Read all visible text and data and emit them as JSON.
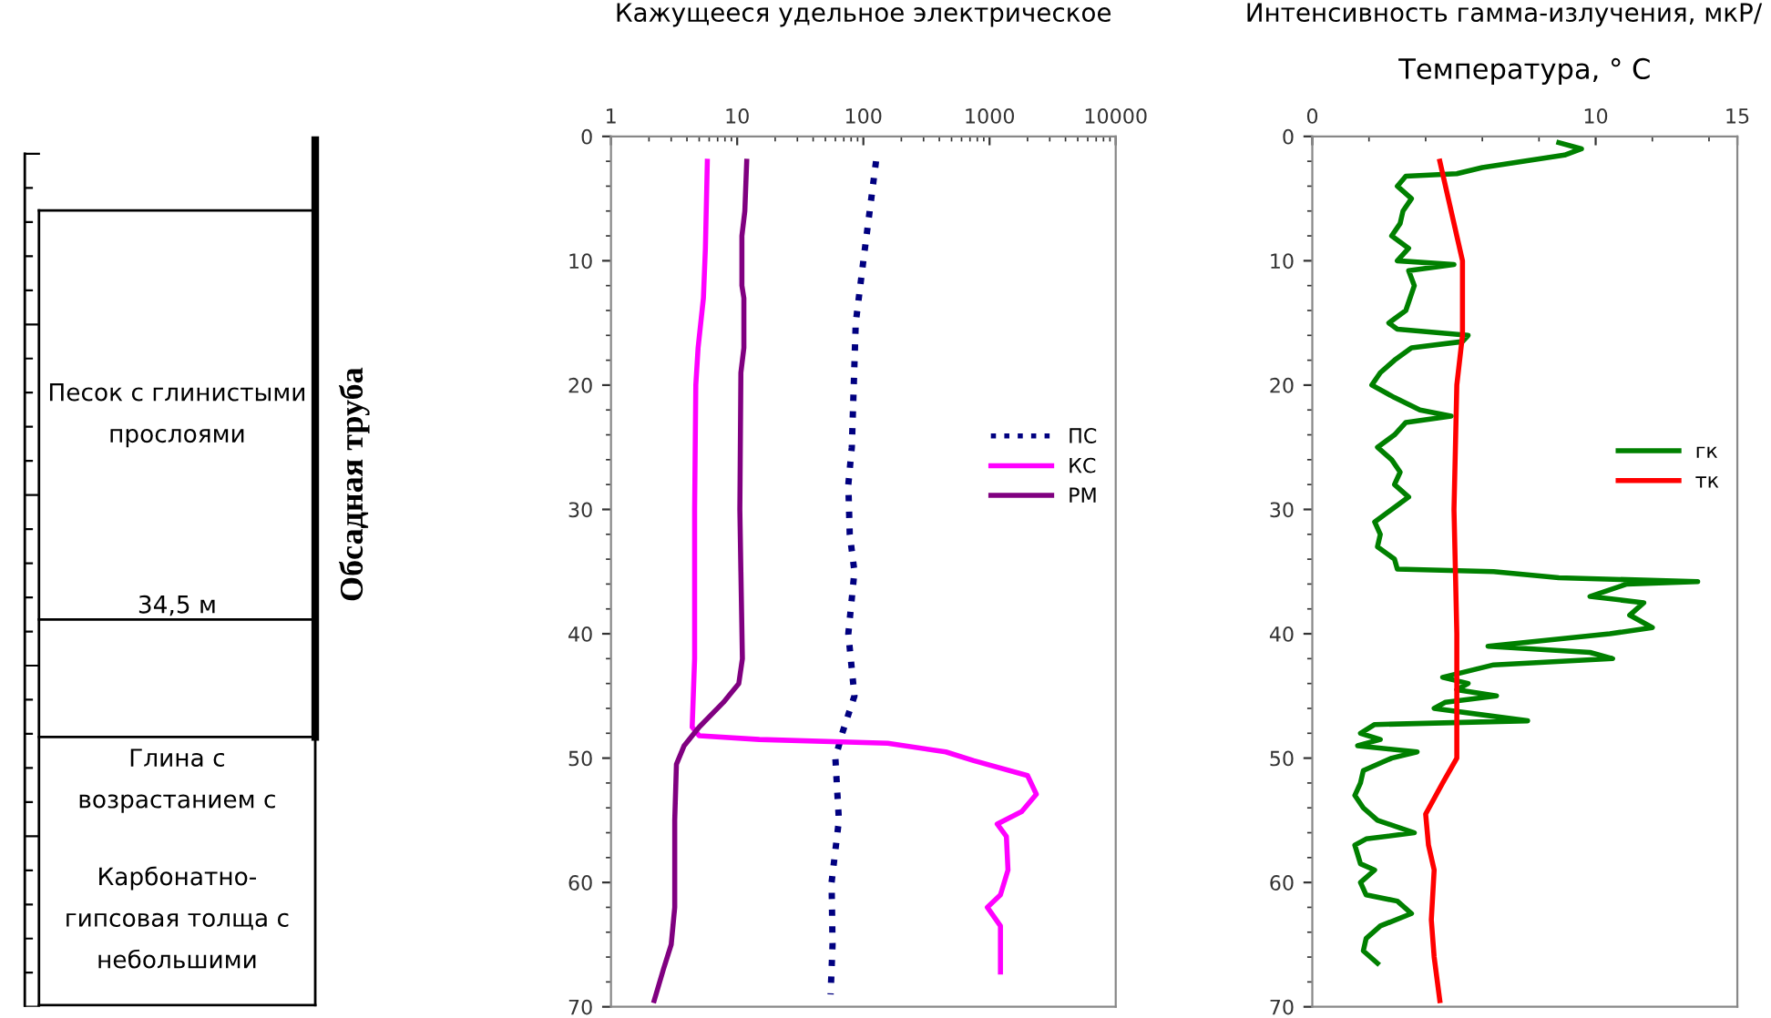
{
  "chart_data": [
    {
      "type": "other",
      "annotations": [
        "Песок с глинистыми\nпрослоями",
        "34,5 м",
        "Глина с\nвозрастанием с",
        "Карбонатно-\nгипсовая толща с\nнебольшими",
        "Обсадная труба"
      ]
    },
    {
      "type": "line",
      "orientation": "horizontal",
      "title": "Кажущееся удельное электрическое",
      "log": "x",
      "xlim": [
        1,
        10000
      ],
      "xticks": [
        1,
        10,
        100,
        1000,
        10000
      ],
      "ylim": [
        70,
        0
      ],
      "yticks": [
        0,
        10,
        20,
        30,
        40,
        50,
        60,
        70
      ],
      "legend": "right",
      "grid": false,
      "series": [
        {
          "name": "ПС",
          "color": "#000080",
          "line_style": "dotted",
          "values": [
            126,
            100,
            87,
            81,
            76,
            78,
            85,
            76,
            85,
            68,
            60,
            64,
            56,
            57,
            55
          ],
          "x": [
            2,
            10,
            15,
            25,
            28,
            32,
            35,
            40,
            45,
            48,
            50,
            55,
            60,
            65,
            69
          ]
        },
        {
          "name": "КС",
          "color": "#ff00ff",
          "line_style": "solid",
          "values": [
            5.8,
            5.6,
            5.4,
            4.9,
            4.7,
            4.6,
            4.6,
            4.4,
            5,
            15,
            156,
            450,
            750,
            2000,
            2350,
            1800,
            1150,
            1360,
            1400,
            1220,
            960,
            1220,
            1220
          ],
          "x": [
            2,
            9,
            13,
            17,
            20,
            30,
            42,
            47.5,
            48.2,
            48.5,
            48.8,
            49.5,
            50.2,
            51.4,
            52.9,
            54.3,
            55.3,
            56.3,
            59,
            61,
            62,
            63.5,
            67.2
          ]
        },
        {
          "name": "РМ",
          "color": "#800080",
          "line_style": "solid",
          "values": [
            11.9,
            11.5,
            10.9,
            10.9,
            11.3,
            11.3,
            10.7,
            10.5,
            10.7,
            11,
            10.3,
            7.8,
            5,
            3.8,
            3.3,
            3.2,
            3.2,
            3.0,
            2.6,
            2.2
          ],
          "x": [
            2,
            6,
            8,
            12,
            13,
            17,
            19,
            30,
            35,
            42,
            44,
            45.5,
            47.5,
            49,
            50.5,
            55,
            62,
            65,
            67,
            69.5
          ]
        }
      ]
    },
    {
      "type": "line",
      "orientation": "horizontal",
      "title": "Интенсивность гамма-излучения, мкР/",
      "subtitle": "Температура, ° С",
      "xlim": [
        0,
        15
      ],
      "xticks": [
        0,
        10,
        15
      ],
      "ylim": [
        70,
        0
      ],
      "yticks": [
        0,
        10,
        20,
        30,
        40,
        50,
        60,
        70
      ],
      "legend": "right",
      "grid": false,
      "series": [
        {
          "name": "гк",
          "color": "#008000",
          "line_style": "solid",
          "values": [
            8.7,
            9.5,
            8.9,
            6.0,
            5.1,
            3.3,
            3.0,
            3.5,
            3.2,
            3.1,
            2.8,
            3.4,
            3.0,
            5.0,
            3.4,
            3.6,
            3.3,
            2.7,
            3.0,
            5.5,
            5.3,
            3.5,
            2.9,
            2.4,
            2.1,
            2.9,
            3.8,
            4.9,
            3.3,
            2.9,
            2.3,
            2.8,
            3.1,
            2.9,
            3.4,
            2.8,
            2.2,
            2.4,
            2.3,
            2.9,
            3.0,
            6.4,
            8.7,
            13.6,
            11.1,
            9.8,
            11.7,
            11.2,
            12.0,
            10.5,
            6.2,
            9.8,
            10.6,
            6.4,
            4.6,
            5.5,
            5.1,
            6.5,
            4.7,
            4.3,
            7.6,
            2.2,
            1.7,
            2.4,
            1.6,
            3.7,
            2.8,
            1.8,
            1.7,
            1.5,
            1.8,
            2.3,
            3.6,
            1.9,
            1.5,
            1.7,
            2.2,
            1.7,
            1.9,
            3.0,
            3.5,
            2.4,
            1.9,
            1.8,
            2.3
          ],
          "x": [
            0.5,
            1,
            1.5,
            2.5,
            3,
            3.2,
            4,
            5,
            6,
            7,
            8,
            9,
            10,
            10.3,
            10.8,
            12,
            14,
            15,
            15.5,
            16,
            16.5,
            17,
            18,
            19,
            20,
            21,
            22,
            22.5,
            23,
            24,
            25,
            26,
            27,
            28,
            29,
            30,
            31,
            32,
            33,
            34,
            34.8,
            35,
            35.5,
            35.8,
            36,
            37,
            37.5,
            38.5,
            39.5,
            40,
            41,
            41.5,
            42,
            42.5,
            43.5,
            44,
            44.5,
            45,
            45.5,
            46,
            47,
            47.3,
            48,
            48.5,
            49,
            49.5,
            50,
            51,
            52,
            53,
            54,
            55,
            56,
            56.5,
            57,
            58.5,
            59,
            60,
            61,
            61.5,
            62.5,
            63.5,
            64.5,
            65.5,
            66.5
          ]
        },
        {
          "name": "тк",
          "color": "#ff0000",
          "line_style": "solid",
          "values": [
            4.5,
            4.8,
            5.1,
            5.3,
            5.3,
            5.1,
            5.0,
            5.1,
            5.1,
            4.6,
            4.0,
            4.1,
            4.3,
            4.2,
            4.3,
            4.5
          ],
          "x": [
            2,
            5,
            8,
            10,
            16,
            20,
            30,
            40,
            50,
            52,
            54.5,
            57,
            59,
            63,
            66,
            69.5
          ]
        }
      ]
    }
  ]
}
